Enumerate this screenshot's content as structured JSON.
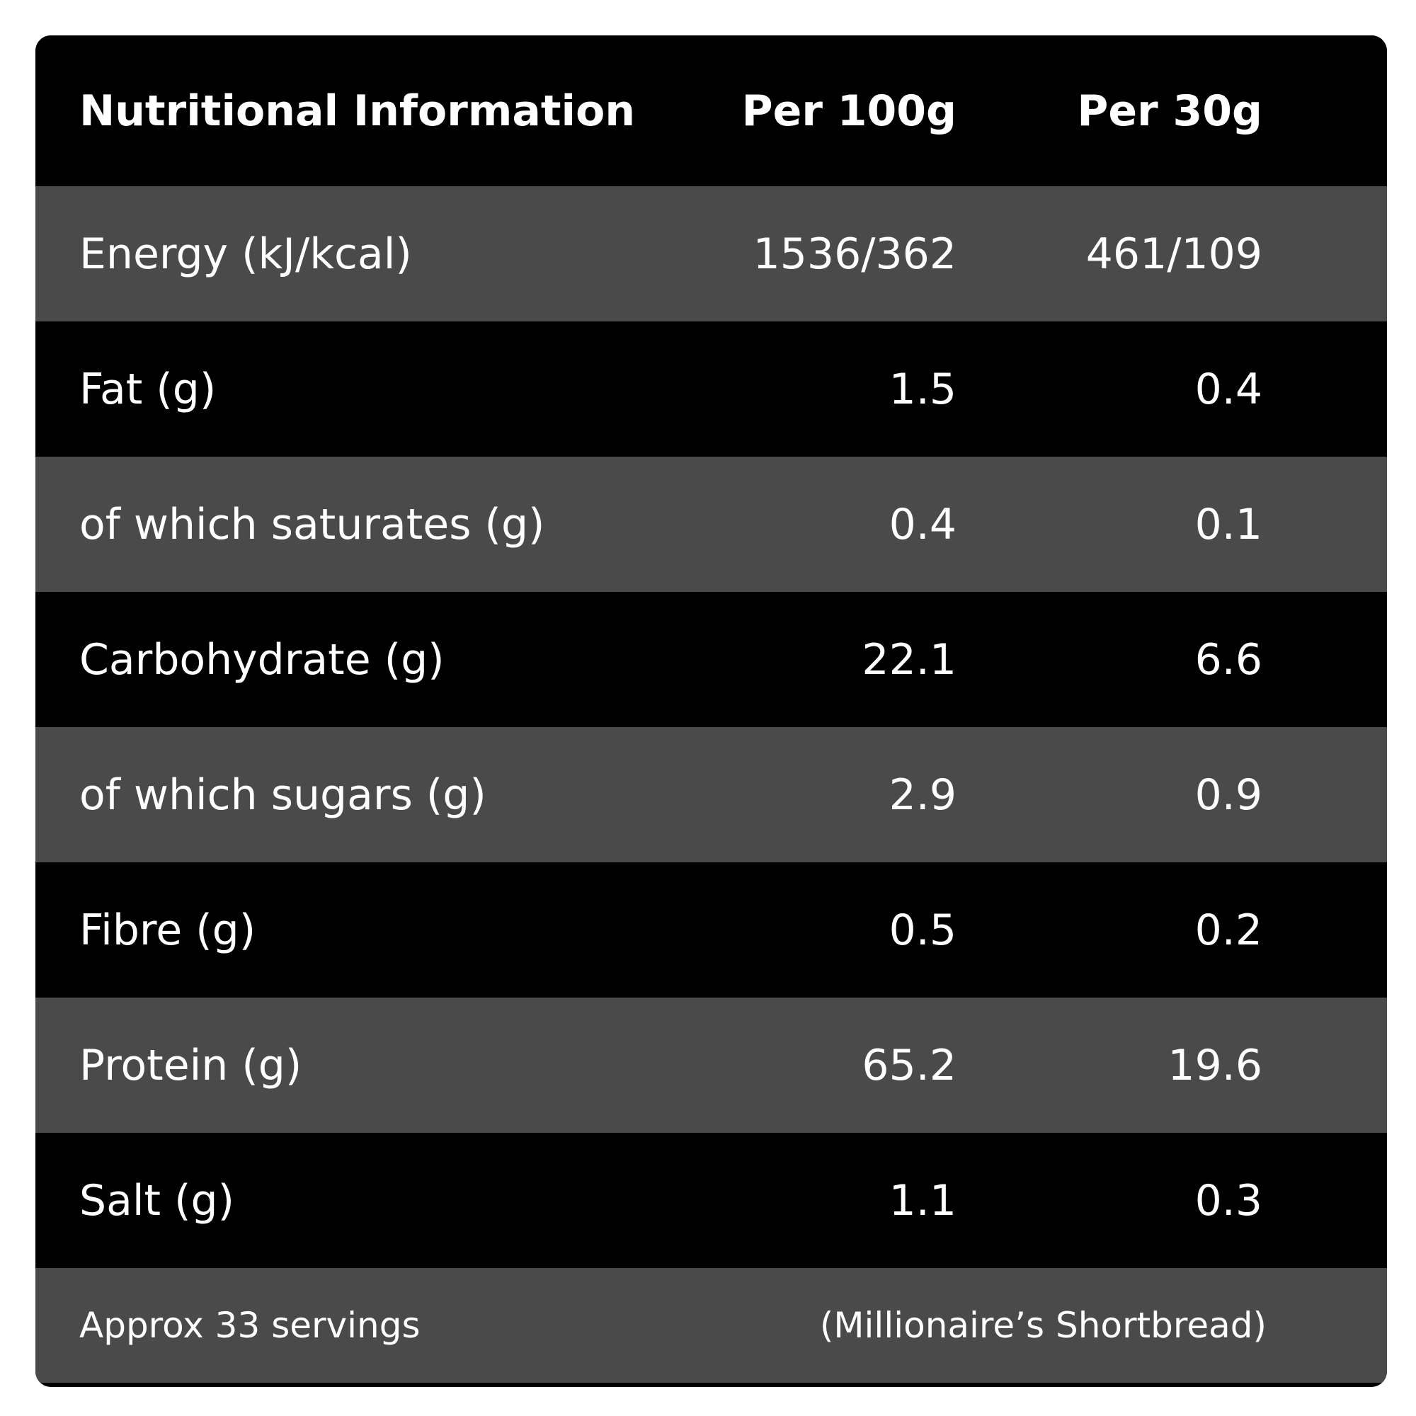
{
  "table": {
    "header": {
      "title": "Nutritional Information",
      "col_per_100g": "Per 100g",
      "col_per_30g": "Per 30g"
    },
    "rows": [
      {
        "label": "Energy (kJ/kcal)",
        "per_100g": "1536/362",
        "per_30g": "461/109"
      },
      {
        "label": "Fat (g)",
        "per_100g": "1.5",
        "per_30g": "0.4"
      },
      {
        "label": "of which saturates (g)",
        "per_100g": "0.4",
        "per_30g": "0.1"
      },
      {
        "label": "Carbohydrate (g)",
        "per_100g": "22.1",
        "per_30g": "6.6"
      },
      {
        "label": "of which sugars (g)",
        "per_100g": "2.9",
        "per_30g": "0.9"
      },
      {
        "label": "Fibre (g)",
        "per_100g": "0.5",
        "per_30g": "0.2"
      },
      {
        "label": "Protein (g)",
        "per_100g": "65.2",
        "per_30g": "19.6"
      },
      {
        "label": "Salt (g)",
        "per_100g": "1.1",
        "per_30g": "0.3"
      }
    ],
    "footer": {
      "servings": "Approx 33 servings",
      "flavour": "(Millionaire’s Shortbread)"
    }
  },
  "colors": {
    "dark_row": "#000000",
    "grey_row": "#4a4a4a",
    "text": "#ffffff"
  }
}
